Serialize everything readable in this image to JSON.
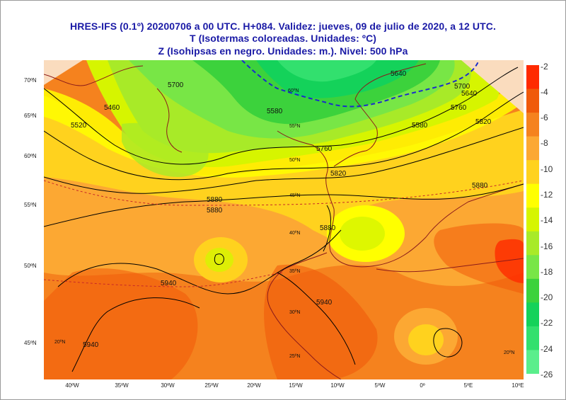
{
  "title": {
    "line1": "HRES-IFS (0.1º) 20200706 a 00 UTC.  H+084. Validez: jueves, 09 de julio de 2020,  a  12 UTC.",
    "line2": "T (Isotermas coloreadas. Unidades: ºC)",
    "line3": "Z (Isohipsas en negro. Unidades: m.).   Nivel: 500 hPa"
  },
  "lat_labels": [
    "70ºN",
    "65ºN",
    "60ºN",
    "55ºN",
    "50ºN",
    "45ºN"
  ],
  "lon_labels": [
    "40ºW",
    "35ºW",
    "30ºW",
    "25ºW",
    "20ºW",
    "15ºW",
    "10ºW",
    "5ºW",
    "0º",
    "5ºE",
    "10ºE"
  ],
  "inner_lat_labels": [
    "60ºN",
    "55ºN",
    "50ºN",
    "45ºN",
    "40ºN",
    "35ºN",
    "30ºN",
    "25ºN",
    "20ºN",
    "20ºN"
  ],
  "contour_labels": [
    "5700",
    "5460",
    "5520",
    "5580",
    "5640",
    "5700",
    "5760",
    "5820",
    "5880",
    "5940",
    "5940",
    "5940",
    "5820",
    "5880",
    "5880",
    "5760",
    "5640",
    "5580",
    "5880"
  ],
  "legend": {
    "labels": [
      "-2",
      "-4",
      "-6",
      "-8",
      "-10",
      "-12",
      "-14",
      "-16",
      "-18",
      "-20",
      "-22",
      "-24",
      "-26"
    ],
    "colors": [
      "#ff2a00",
      "#f05a0a",
      "#f5821e",
      "#fca833",
      "#ffd21e",
      "#ffff00",
      "#d6f500",
      "#a8ea28",
      "#78e646",
      "#3cd23c",
      "#14d25a",
      "#32e06e",
      "#5aee8c"
    ]
  },
  "map_colors": {
    "land_outside": "#fadcbe",
    "coast": "#8b1a1a",
    "contour": "#000000",
    "jet": "#1a2ccc"
  }
}
